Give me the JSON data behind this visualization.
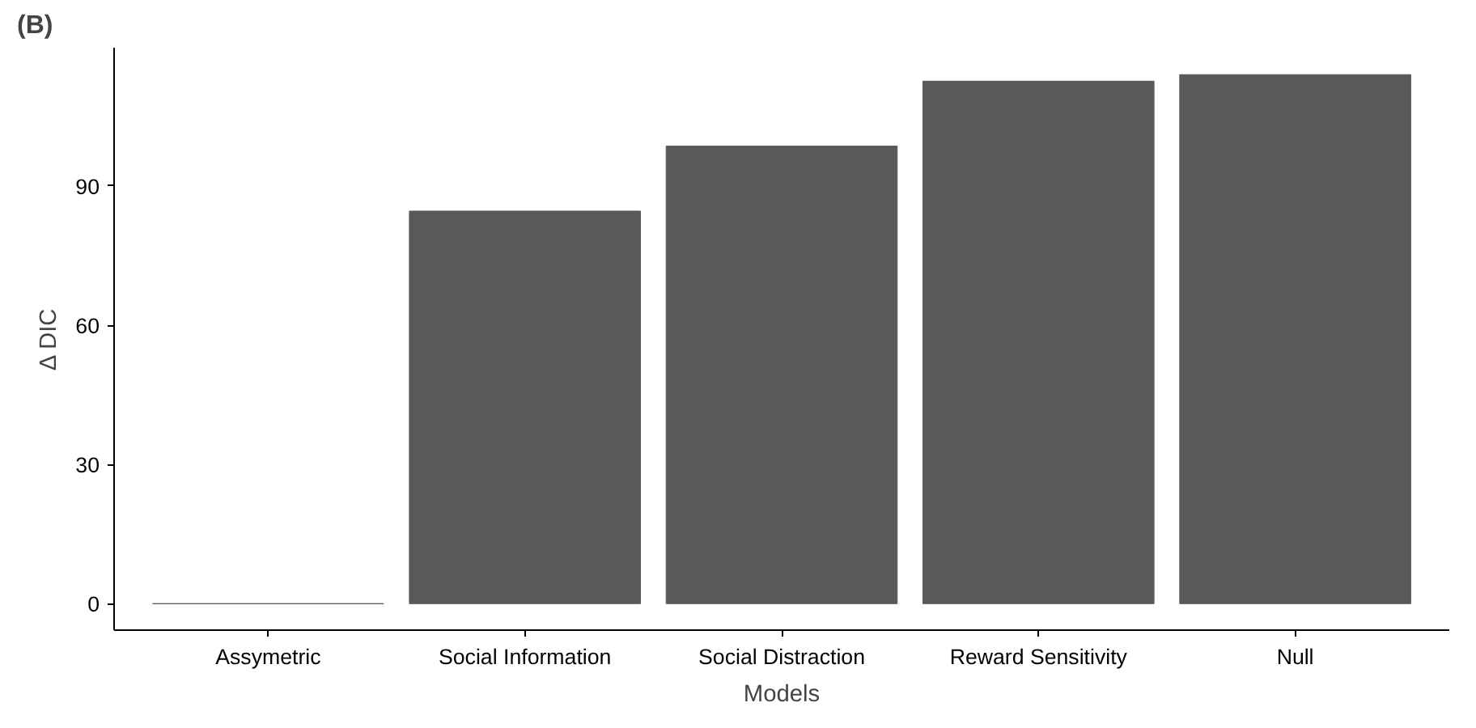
{
  "chart_data": {
    "type": "bar",
    "title": "(B)",
    "xlabel": "Models",
    "ylabel": "Δ DIC",
    "categories": [
      "Assymetric",
      "Social Information",
      "Social Distraction",
      "Reward Sensitivity",
      "Null"
    ],
    "values": [
      0,
      84.6,
      98.6,
      112.6,
      114.0
    ],
    "color": "#595959",
    "ylim": [
      -5.7,
      119.8
    ],
    "yticks": [
      0,
      30,
      60,
      90
    ],
    "grid": false
  }
}
